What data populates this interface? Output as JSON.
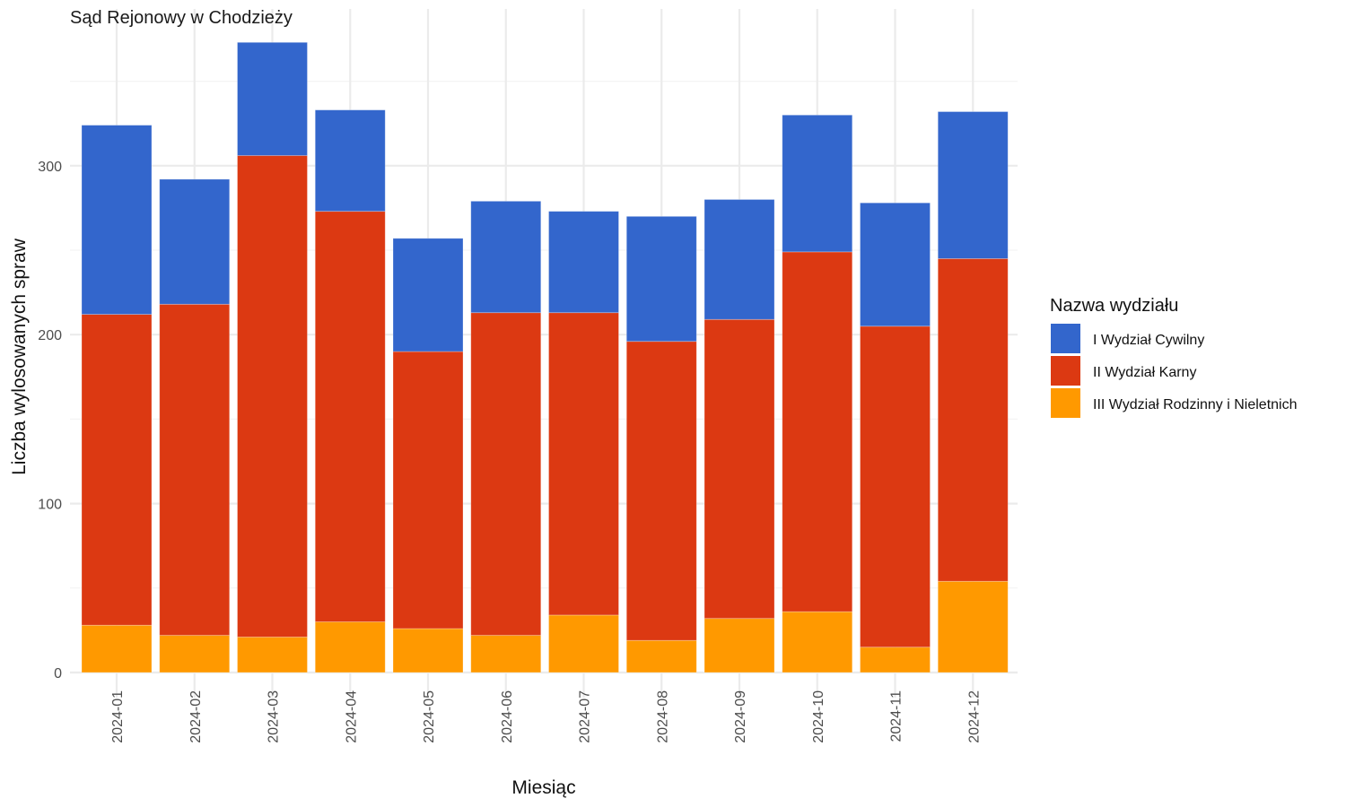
{
  "chart_data": {
    "type": "bar",
    "stacked": true,
    "title": "Sąd Rejonowy w Chodzieży",
    "xlabel": "Miesiąc",
    "ylabel": "Liczba wylosowanych spraw",
    "categories": [
      "2024-01",
      "2024-02",
      "2024-03",
      "2024-04",
      "2024-05",
      "2024-06",
      "2024-07",
      "2024-08",
      "2024-09",
      "2024-10",
      "2024-11",
      "2024-12"
    ],
    "series": [
      {
        "name": "III Wydział Rodzinny i Nieletnich",
        "color": "#FF9900",
        "values": [
          28,
          22,
          21,
          30,
          26,
          22,
          34,
          19,
          32,
          36,
          15,
          54
        ]
      },
      {
        "name": "II Wydział Karny",
        "color": "#DC3912",
        "values": [
          184,
          196,
          285,
          243,
          164,
          191,
          179,
          177,
          177,
          213,
          190,
          191
        ]
      },
      {
        "name": "I Wydział Cywilny",
        "color": "#3366CC",
        "values": [
          112,
          74,
          67,
          60,
          67,
          66,
          60,
          74,
          71,
          81,
          73,
          87
        ]
      }
    ],
    "yticks": [
      0,
      100,
      200,
      300
    ],
    "ylim": [
      0,
      392
    ],
    "grid": true,
    "legend": {
      "title": "Nazwa wydziału",
      "position": "right",
      "items": [
        "I Wydział Cywilny",
        "II Wydział Karny",
        "III Wydział Rodzinny i Nieletnich"
      ]
    }
  }
}
